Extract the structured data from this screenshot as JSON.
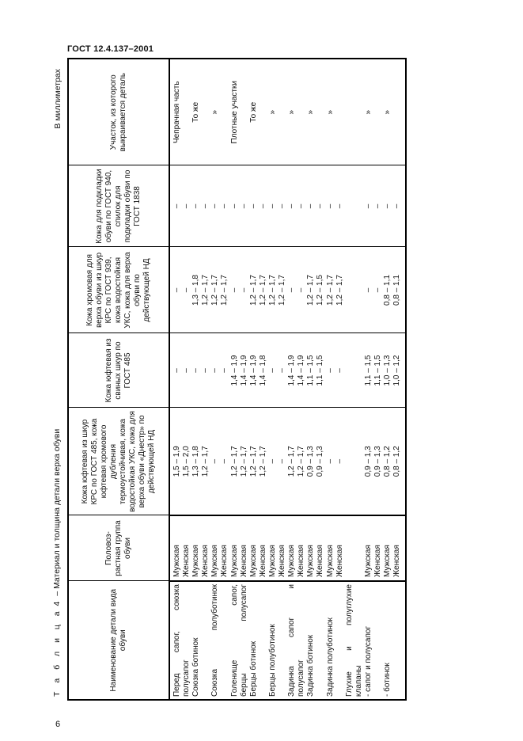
{
  "header": {
    "doc_code": "ГОСТ 12.4.137–2001",
    "page_number": "6"
  },
  "caption": {
    "label": "Т а б л и ц а",
    "number": "4",
    "title": "– Материал и толщина детали верха обуви"
  },
  "units": "В миллиметрах",
  "table": {
    "columns": [
      "Наименование детали вида обуви",
      "Половоз-растная группа обуви",
      "Кожа юфтевая из шкур КРС по ГОСТ 485, кожа юфтевая хромового дубления термоустойчивая, кожа водостойкая УКС, кожа для верха обуви «Днестр» по действующей НД",
      "Кожа юфтевая из свиных шкур по ГОСТ 485",
      "Кожа хромовая для верха обуви из шкур КРС по ГОСТ 939, кожа водостойкая УКС, кожа для верха обуви по действующей НД",
      "Кожа для подкладки обуви по ГОСТ 940, спилок для подкладки обуви по ГОСТ 1838",
      "Участок, из которого выкраивается деталь"
    ],
    "rows": [
      [
        "Перед сапог, союзка",
        "Мужская",
        "1,5 – 1,9",
        "–",
        "–",
        "–",
        "Чепрачная часть"
      ],
      [
        "полусапог",
        "Женская",
        "1,5 – 2,0",
        "–",
        "–",
        "–",
        ""
      ],
      [
        "Союзка ботинок",
        "Мужская",
        "1,3 – 1,8",
        "–",
        "1,3 – 1,8",
        "–",
        "То же"
      ],
      [
        "",
        "Женская",
        "1,2 – 1,7",
        "–",
        "1,2 – 1,7",
        "–",
        ""
      ],
      [
        "Союзка полуботинок",
        "Мужская",
        "–",
        "–",
        "1,2 – 1,7",
        "–",
        "»"
      ],
      [
        "",
        "Женская",
        "–",
        "–",
        "1,2 – 1,7",
        "–",
        ""
      ],
      [
        "Голенище сапог,",
        "Мужская",
        "1,2 – 1,7",
        "1,4 – 1,9",
        "–",
        "–",
        "Плотные участки"
      ],
      [
        "берцы полусапог",
        "Женская",
        "1,2 – 1,7",
        "1,4 – 1,9",
        "–",
        "–",
        ""
      ],
      [
        "Берцы ботинок",
        "Мужская",
        "1,2 – 1,7",
        "1,4 – 1,9",
        "1,2 – 1,7",
        "–",
        "То же"
      ],
      [
        "",
        "Женская",
        "1,2 – 1,7",
        "1,4 – 1,8",
        "1,2 – 1,7",
        "–",
        ""
      ],
      [
        "Берцы полуботинок",
        "Мужская",
        "–",
        "–",
        "1,2 – 1,7",
        "–",
        "»"
      ],
      [
        "",
        "Женская",
        "–",
        "–",
        "1,2 – 1,7",
        "–",
        ""
      ],
      [
        "Задинка сапог и",
        "Мужская",
        "1,2 – 1,7",
        "1,4 – 1,9",
        "–",
        "–",
        "»"
      ],
      [
        "полусапог",
        "Женская",
        "1,2 – 1,7",
        "1,4 – 1,9",
        "–",
        "–",
        ""
      ],
      [
        "Задинка ботинок",
        "Мужская",
        "0,9 – 1,3",
        "1,1 – 1,5",
        "1,2 – 1,7",
        "–",
        "»"
      ],
      [
        "",
        "Женская",
        "0,9 – 1,3",
        "1,1 – 1,5",
        "1,2 – 1,5",
        "–",
        ""
      ],
      [
        "Задинка полуботинок",
        "Мужская",
        "–",
        "–",
        "1,2 – 1,7",
        "–",
        "»"
      ],
      [
        "",
        "Женская",
        "–",
        "–",
        "1,2 – 1,7",
        "–",
        ""
      ],
      [
        "Глухие и полуглухие",
        "",
        "",
        "",
        "",
        "",
        ""
      ],
      [
        "клапаны",
        "",
        "",
        "",
        "",
        "",
        ""
      ],
      [
        "- сапог и полусапог",
        "Мужская",
        "0,9 – 1,3",
        "1,1 – 1,5",
        "–",
        "–",
        "»"
      ],
      [
        "",
        "Женская",
        "0,9 – 1,3",
        "1,1 – 1,5",
        "–",
        "–",
        ""
      ],
      [
        "- ботинок",
        "Мужская",
        "0,8 – 1,2",
        "1,0 – 1,3",
        "0,8 – 1,1",
        "–",
        "»"
      ],
      [
        "",
        "Женская",
        "0,8 – 1,2",
        "1,0 – 1,2",
        "0,8 – 1,1",
        "–",
        ""
      ]
    ]
  }
}
